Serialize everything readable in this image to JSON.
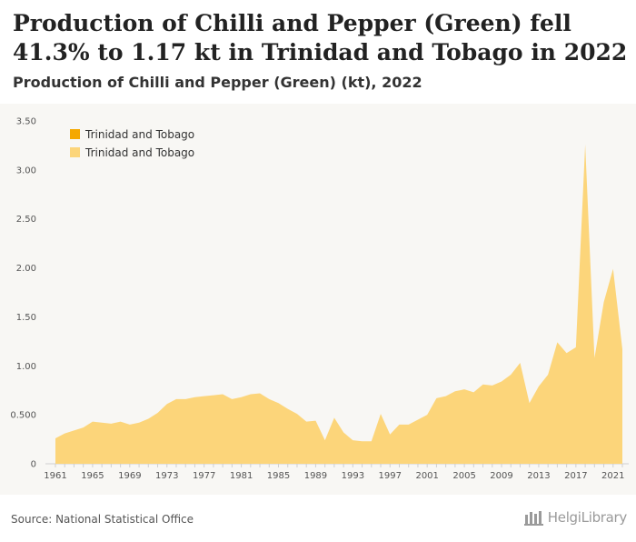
{
  "header": {
    "title": "Production of Chilli and Pepper (Green) fell 41.3% to 1.17 kt in Trinidad and Tobago in 2022",
    "subtitle": "Production of Chilli and Pepper (Green) (kt), 2022"
  },
  "footer": {
    "source": "Source: National Statistical Office",
    "brand": "HelgiLibrary"
  },
  "colors": {
    "area": "#fcd57a",
    "legend_primary": "#f5a800",
    "legend_secondary": "#fcd57a",
    "chart_background": "#f8f7f4"
  },
  "chart_data": {
    "type": "area",
    "title": "Production of Chilli and Pepper (Green) (kt), 2022",
    "xlabel": "",
    "ylabel": "",
    "ylim": [
      0,
      3.5
    ],
    "yticks": [
      "0",
      "0.500",
      "1.00",
      "1.50",
      "2.00",
      "2.50",
      "3.00",
      "3.50"
    ],
    "xticks": [
      "1961",
      "1965",
      "1969",
      "1973",
      "1977",
      "1981",
      "1985",
      "1989",
      "1993",
      "1997",
      "2001",
      "2005",
      "2009",
      "2013",
      "2017",
      "2021"
    ],
    "grid": false,
    "legend": {
      "placement": "top-left",
      "entries": [
        "Trinidad and Tobago",
        "Trinidad and Tobago"
      ]
    },
    "series": [
      {
        "name": "Trinidad and Tobago",
        "x": [
          1961,
          1962,
          1963,
          1964,
          1965,
          1966,
          1967,
          1968,
          1969,
          1970,
          1971,
          1972,
          1973,
          1974,
          1975,
          1976,
          1977,
          1978,
          1979,
          1980,
          1981,
          1982,
          1983,
          1984,
          1985,
          1986,
          1987,
          1988,
          1989,
          1990,
          1991,
          1992,
          1993,
          1994,
          1995,
          1996,
          1997,
          1998,
          1999,
          2000,
          2001,
          2002,
          2003,
          2004,
          2005,
          2006,
          2007,
          2008,
          2009,
          2010,
          2011,
          2012,
          2013,
          2014,
          2015,
          2016,
          2017,
          2018,
          2019,
          2020,
          2021,
          2022
        ],
        "values": [
          0.26,
          0.31,
          0.34,
          0.37,
          0.43,
          0.42,
          0.41,
          0.43,
          0.4,
          0.42,
          0.46,
          0.52,
          0.61,
          0.66,
          0.66,
          0.68,
          0.69,
          0.7,
          0.71,
          0.66,
          0.68,
          0.71,
          0.72,
          0.66,
          0.62,
          0.56,
          0.51,
          0.43,
          0.44,
          0.24,
          0.47,
          0.32,
          0.24,
          0.23,
          0.23,
          0.51,
          0.3,
          0.4,
          0.4,
          0.45,
          0.5,
          0.67,
          0.69,
          0.74,
          0.76,
          0.73,
          0.81,
          0.8,
          0.84,
          0.91,
          1.03,
          0.62,
          0.79,
          0.91,
          1.24,
          1.13,
          1.19,
          3.26,
          1.08,
          1.65,
          1.99,
          1.17
        ]
      }
    ]
  }
}
